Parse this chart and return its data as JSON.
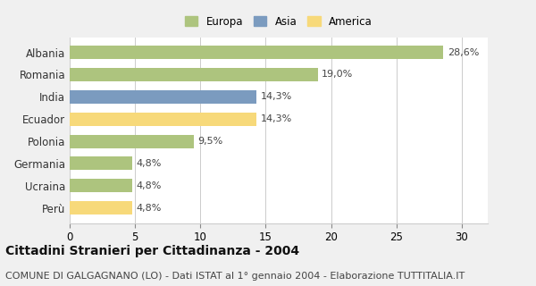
{
  "categories": [
    "Albania",
    "Romania",
    "India",
    "Ecuador",
    "Polonia",
    "Germania",
    "Ucraina",
    "Perù"
  ],
  "values": [
    28.6,
    19.0,
    14.3,
    14.3,
    9.5,
    4.8,
    4.8,
    4.8
  ],
  "labels": [
    "28,6%",
    "19,0%",
    "14,3%",
    "14,3%",
    "9,5%",
    "4,8%",
    "4,8%",
    "4,8%"
  ],
  "continents": [
    "Europa",
    "Europa",
    "Asia",
    "America",
    "Europa",
    "Europa",
    "Europa",
    "America"
  ],
  "colors": {
    "Europa": "#adc47e",
    "Asia": "#7b9bbf",
    "America": "#f7d97a"
  },
  "legend_order": [
    "Europa",
    "Asia",
    "America"
  ],
  "xlim": [
    0,
    32
  ],
  "xticks": [
    0,
    5,
    10,
    15,
    20,
    25,
    30
  ],
  "title": "Cittadini Stranieri per Cittadinanza - 2004",
  "subtitle": "COMUNE DI GALGAGNANO (LO) - Dati ISTAT al 1° gennaio 2004 - Elaborazione TUTTITALIA.IT",
  "title_fontsize": 10,
  "subtitle_fontsize": 8,
  "background_color": "#f0f0f0",
  "bar_background": "#ffffff",
  "grid_color": "#cccccc"
}
